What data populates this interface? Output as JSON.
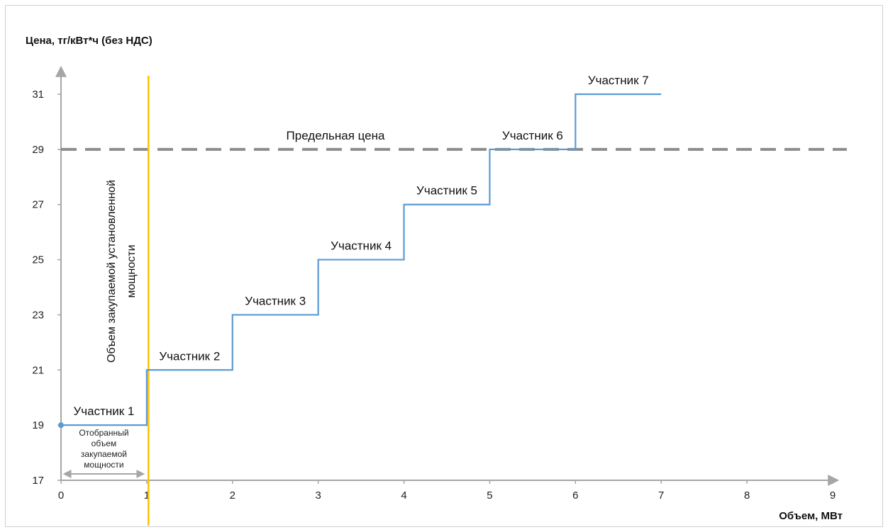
{
  "chart_data": {
    "type": "line",
    "step": true,
    "ylabel": "Цена, тг/кВт*ч (без НДС)",
    "xlabel": "Объем, МВт",
    "xlim": [
      0,
      9
    ],
    "ylim": [
      17,
      32
    ],
    "x_ticks": [
      0,
      1,
      2,
      3,
      4,
      5,
      6,
      7,
      8,
      9
    ],
    "y_ticks": [
      17,
      19,
      21,
      23,
      25,
      27,
      29,
      31
    ],
    "grid": false,
    "series": [
      {
        "values": [
          {
            "x": 0,
            "y": 19
          },
          {
            "x": 1,
            "y": 19
          },
          {
            "x": 1,
            "y": 21
          },
          {
            "x": 2,
            "y": 21
          },
          {
            "x": 2,
            "y": 23
          },
          {
            "x": 3,
            "y": 23
          },
          {
            "x": 3,
            "y": 25
          },
          {
            "x": 4,
            "y": 25
          },
          {
            "x": 4,
            "y": 27
          },
          {
            "x": 5,
            "y": 27
          },
          {
            "x": 5,
            "y": 29
          },
          {
            "x": 6,
            "y": 29
          },
          {
            "x": 6,
            "y": 31
          },
          {
            "x": 7,
            "y": 31
          }
        ],
        "color": "#5b9bd5"
      }
    ],
    "step_labels": [
      {
        "text": "Участник 1",
        "x": 0.5,
        "y": 19
      },
      {
        "text": "Участник 2",
        "x": 1.5,
        "y": 21
      },
      {
        "text": "Участник 3",
        "x": 2.5,
        "y": 23
      },
      {
        "text": "Участник 4",
        "x": 3.5,
        "y": 25
      },
      {
        "text": "Участник 5",
        "x": 4.5,
        "y": 27
      },
      {
        "text": "Участник 6",
        "x": 5.5,
        "y": 29
      },
      {
        "text": "Участник 7",
        "x": 6.5,
        "y": 31
      }
    ],
    "price_limit": {
      "label": "Предельная цена",
      "y": 29,
      "color": "#8c8c8c"
    },
    "purchase_volume": {
      "label_lines": [
        "Объем закупаемой установленной",
        "мощности"
      ],
      "x": 1.02,
      "color": "#ffc000"
    },
    "selected_volume": {
      "label_lines": [
        "Отобранный",
        "объем",
        "закупаемой",
        "мощности"
      ],
      "x_from": 0,
      "x_to": 1,
      "color": "#a6a6a6"
    }
  }
}
